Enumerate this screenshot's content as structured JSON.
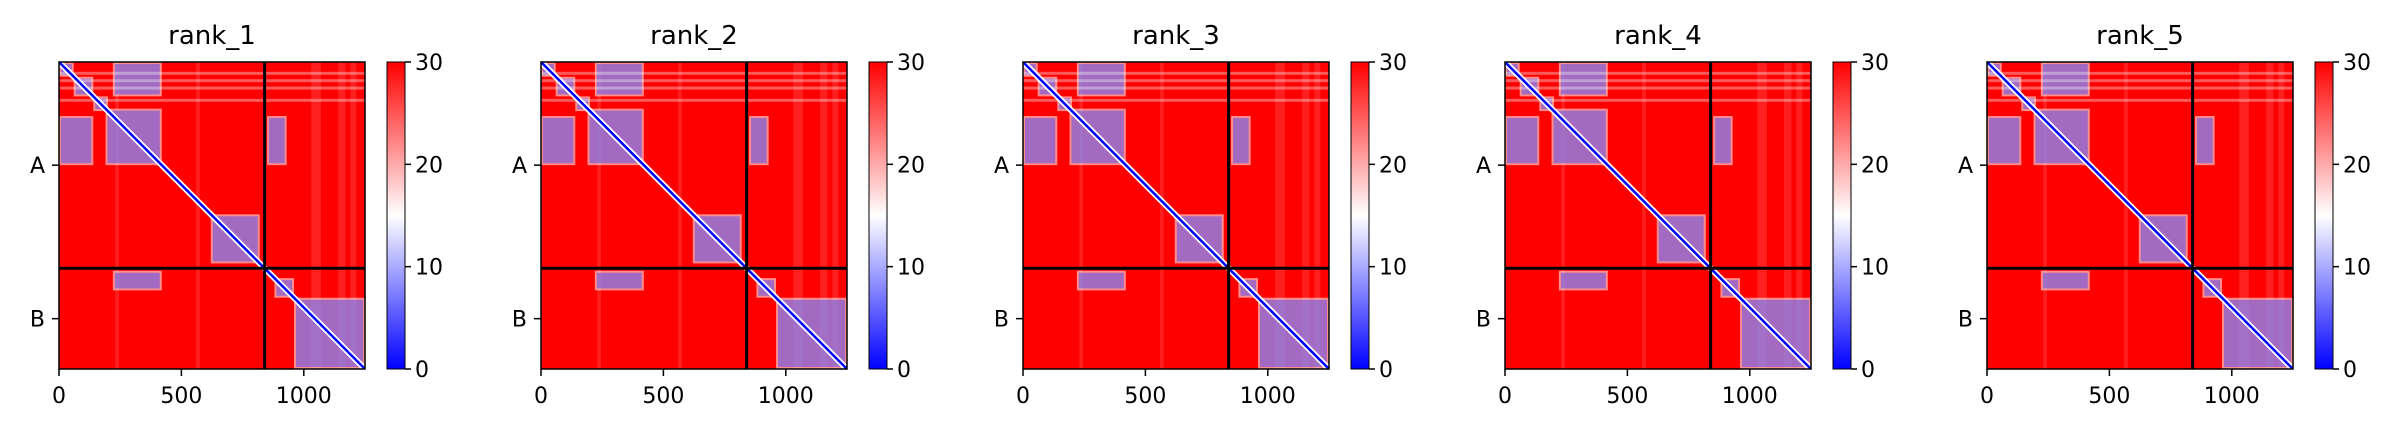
{
  "chart_data": {
    "type": "heatmap",
    "description_free": true,
    "x_ticks": [
      0,
      500,
      1000
    ],
    "x_range": [
      0,
      1250
    ],
    "chain_ticks": [
      {
        "label": "A",
        "center": 420
      },
      {
        "label": "B",
        "center": 1045
      }
    ],
    "chain_boundary": 840,
    "colorbar": {
      "min": 0,
      "max": 30,
      "ticks": [
        0,
        10,
        20,
        30
      ],
      "colors": [
        "#0000ff",
        "#ffffff",
        "#ff0000"
      ]
    },
    "panels": [
      {
        "title": "rank_1"
      },
      {
        "title": "rank_2"
      },
      {
        "title": "rank_3"
      },
      {
        "title": "rank_4"
      },
      {
        "title": "rank_5"
      }
    ]
  }
}
